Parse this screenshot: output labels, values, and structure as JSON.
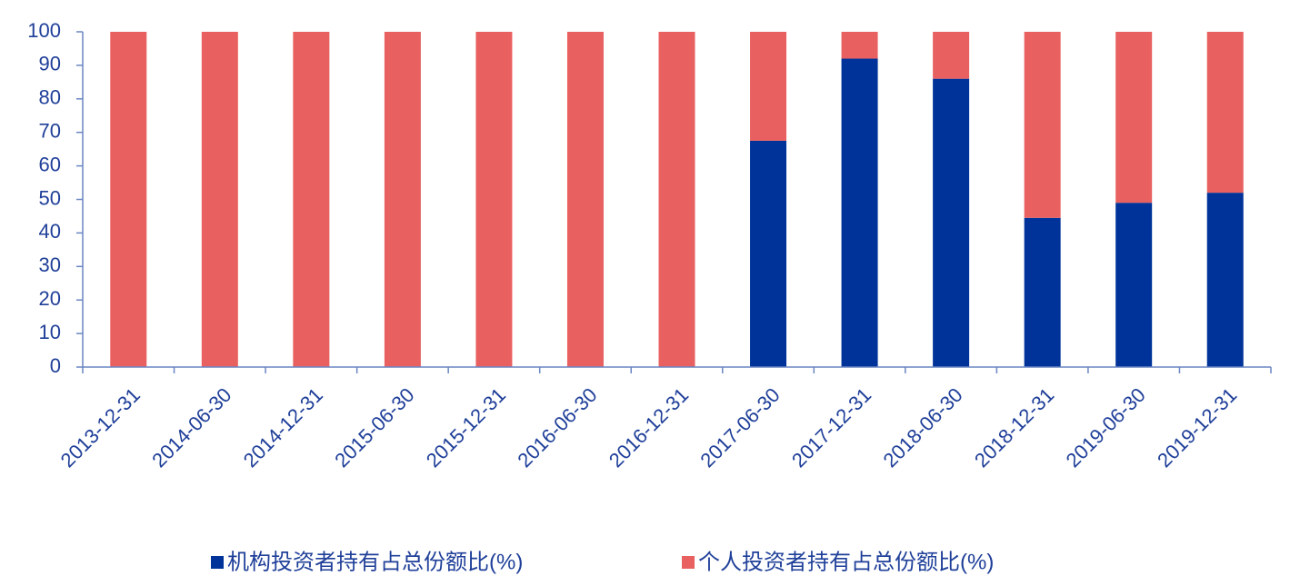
{
  "chart_data": {
    "type": "stacked_bar",
    "categories": [
      "2013-12-31",
      "2014-06-30",
      "2014-12-31",
      "2015-06-30",
      "2015-12-31",
      "2016-06-30",
      "2016-12-31",
      "2017-06-30",
      "2017-12-31",
      "2018-06-30",
      "2018-12-31",
      "2019-06-30",
      "2019-12-31"
    ],
    "series": [
      {
        "name": "机构投资者持有占总份额比(%)",
        "color": "#003399",
        "values": [
          0,
          0,
          0,
          0,
          0,
          0,
          0,
          67.5,
          92,
          86,
          44.5,
          49,
          52
        ]
      },
      {
        "name": "个人投资者持有占总份额比(%)",
        "color": "#e86060",
        "values": [
          100,
          100,
          100,
          100,
          100,
          100,
          100,
          32.5,
          8,
          14,
          55.5,
          51,
          48
        ]
      }
    ],
    "ylim": [
      0,
      100
    ],
    "yticks": [
      0,
      10,
      20,
      30,
      40,
      50,
      60,
      70,
      80,
      90,
      100
    ]
  }
}
